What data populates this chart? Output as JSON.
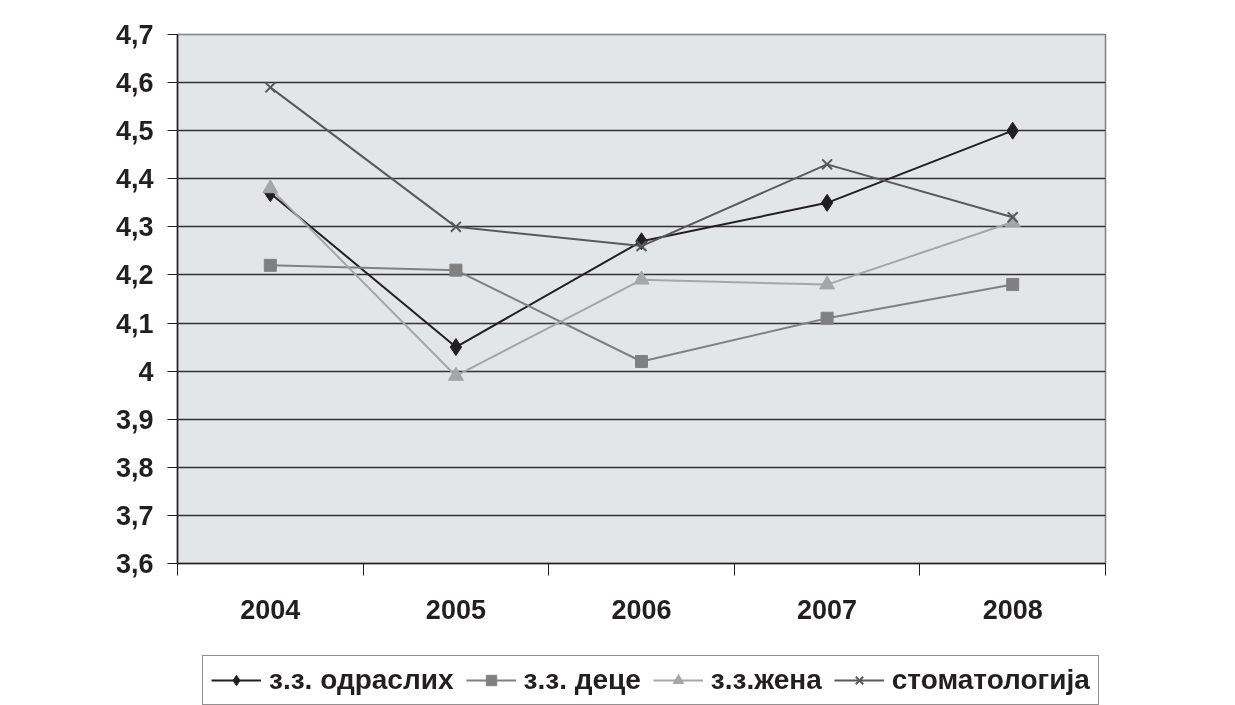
{
  "chart_data": {
    "type": "line",
    "categories": [
      "2004",
      "2005",
      "2006",
      "2007",
      "2008"
    ],
    "series": [
      {
        "name": "з.з. одраслих",
        "color": "#231f20",
        "marker": "diamond",
        "values": [
          4.37,
          4.05,
          4.27,
          4.35,
          4.5
        ]
      },
      {
        "name": "з.з. деце",
        "color": "#808080",
        "marker": "square",
        "values": [
          4.22,
          4.21,
          4.02,
          4.11,
          4.18
        ]
      },
      {
        "name": "з.з.жена",
        "color": "#a6a6a6",
        "marker": "triangle",
        "values": [
          4.38,
          3.99,
          4.19,
          4.18,
          4.31
        ]
      },
      {
        "name": "стоматологија",
        "color": "#595959",
        "marker": "cross",
        "values": [
          4.59,
          4.3,
          4.26,
          4.43,
          4.32
        ]
      }
    ],
    "ylim": [
      3.6,
      4.7
    ],
    "yticks": [
      {
        "value": 3.6,
        "label": "3,6"
      },
      {
        "value": 3.7,
        "label": "3,7"
      },
      {
        "value": 3.8,
        "label": "3,8"
      },
      {
        "value": 3.9,
        "label": "3,9"
      },
      4,
      {
        "value": 4.1,
        "label": "4,1"
      },
      {
        "value": 4.2,
        "label": "4,2"
      },
      {
        "value": 4.3,
        "label": "4,3"
      },
      {
        "value": 4.4,
        "label": "4,4"
      },
      {
        "value": 4.5,
        "label": "4,5"
      },
      {
        "value": 4.6,
        "label": "4,6"
      },
      {
        "value": 4.7,
        "label": "4,7"
      }
    ],
    "grid": "y",
    "legend": "bottom",
    "line_style": "solid"
  }
}
